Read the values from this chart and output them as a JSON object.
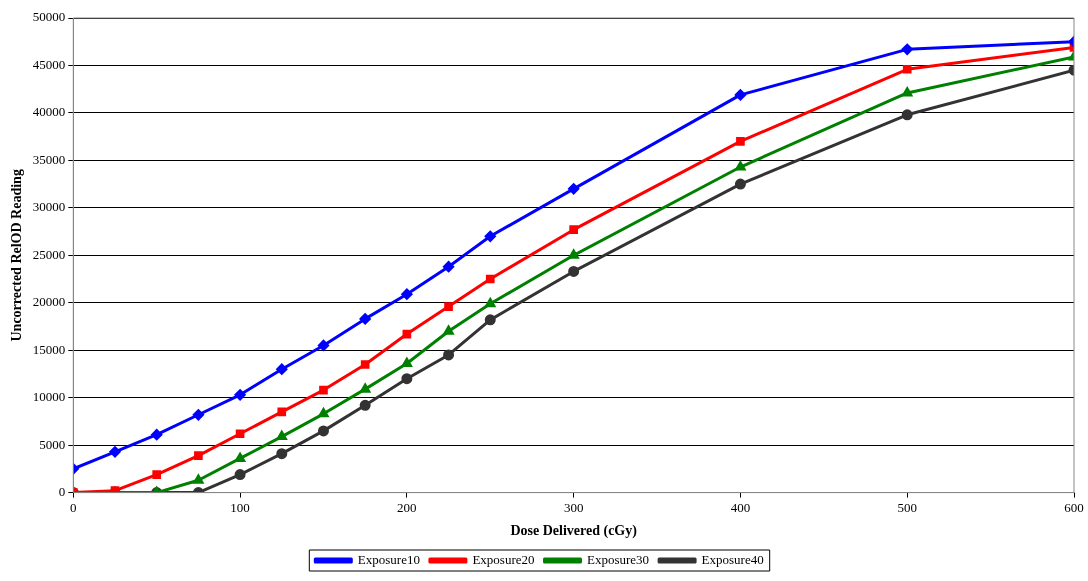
{
  "chart_data": {
    "type": "line",
    "xlabel": "Dose Delivered (cGy)",
    "ylabel": "Uncorrected RelOD Reading",
    "x": [
      0,
      25,
      50,
      75,
      100,
      125,
      150,
      175,
      200,
      225,
      250,
      300,
      400,
      500,
      600
    ],
    "series": [
      {
        "name": "Exposure10",
        "color": "#0000ff",
        "marker": "diamond",
        "values": [
          2500,
          4300,
          6100,
          8200,
          10300,
          13000,
          15500,
          18300,
          20900,
          23800,
          27000,
          32000,
          41900,
          46700,
          47500
        ]
      },
      {
        "name": "Exposure20",
        "color": "#ff0000",
        "marker": "square",
        "values": [
          0,
          200,
          1900,
          3900,
          6200,
          8500,
          10800,
          13500,
          16700,
          19600,
          22500,
          27700,
          37000,
          44600,
          46900
        ]
      },
      {
        "name": "Exposure30",
        "color": "#008000",
        "marker": "triangle",
        "values": [
          0,
          0,
          0,
          1300,
          3600,
          5900,
          8300,
          10900,
          13600,
          17000,
          19900,
          25000,
          34300,
          42100,
          45900
        ]
      },
      {
        "name": "Exposure40",
        "color": "#333333",
        "marker": "circle",
        "values": [
          0,
          0,
          0,
          0,
          1900,
          4100,
          6500,
          9200,
          12000,
          14500,
          18200,
          23300,
          32500,
          39800,
          44500
        ]
      }
    ],
    "xlim": [
      0,
      600
    ],
    "xticks": [
      0,
      100,
      200,
      300,
      400,
      500,
      600
    ],
    "ylim": [
      0,
      50000
    ],
    "yticks": [
      0,
      5000,
      10000,
      15000,
      20000,
      25000,
      30000,
      35000,
      40000,
      45000,
      50000
    ],
    "grid": "y",
    "legend": "bottom",
    "line_style": "solid"
  }
}
